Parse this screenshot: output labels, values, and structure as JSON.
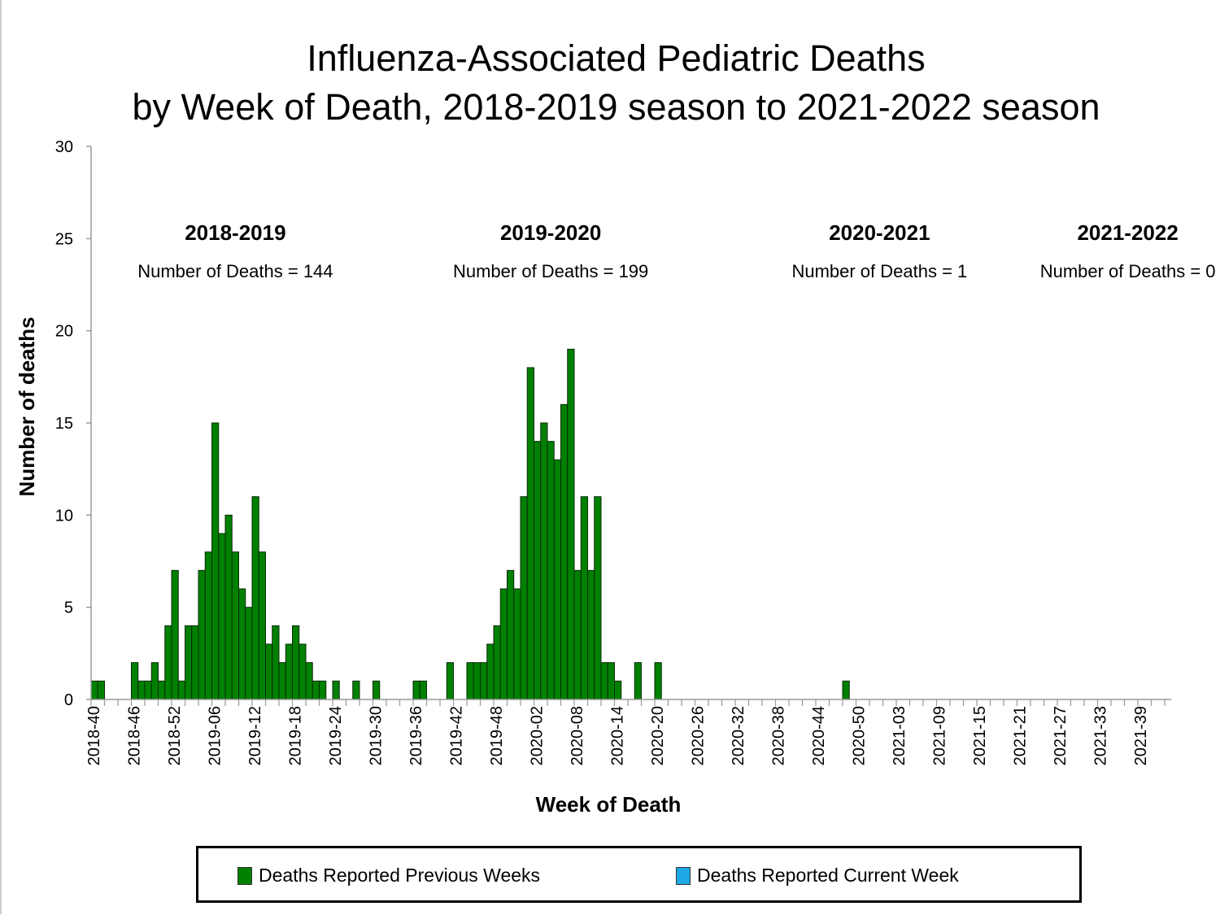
{
  "chart_data": {
    "type": "bar",
    "title": "Influenza-Associated Pediatric Deaths",
    "subtitle": "by Week of Death, 2018-2019 season to 2021-2022 season",
    "xlabel": "Week of Death",
    "ylabel": "Number of deaths",
    "ylim": [
      0,
      30
    ],
    "yticks": [
      0,
      5,
      10,
      15,
      20,
      25,
      30
    ],
    "xtick_labels": [
      "2018-40",
      "2018-46",
      "2018-52",
      "2019-06",
      "2019-12",
      "2019-18",
      "2019-24",
      "2019-30",
      "2019-36",
      "2019-42",
      "2019-48",
      "2020-02",
      "2020-08",
      "2020-14",
      "2020-20",
      "2020-26",
      "2020-32",
      "2020-38",
      "2020-44",
      "2020-50",
      "2021-03",
      "2021-09",
      "2021-15",
      "2021-21",
      "2021-27",
      "2021-33",
      "2021-39"
    ],
    "grid": false,
    "legend_position": "bottom",
    "weeks_per_year": {
      "2018": 52,
      "2019": 52,
      "2020": 53,
      "2021": 52
    },
    "start_week": "2018-40",
    "end_week": "2021-43",
    "series": [
      {
        "name": "Deaths Reported Previous Weeks",
        "color": "#008000",
        "values": [
          1,
          1,
          0,
          0,
          0,
          0,
          2,
          1,
          1,
          2,
          1,
          4,
          7,
          1,
          4,
          4,
          7,
          8,
          15,
          9,
          10,
          8,
          6,
          5,
          11,
          8,
          3,
          4,
          2,
          3,
          4,
          3,
          2,
          1,
          1,
          0,
          1,
          0,
          0,
          1,
          0,
          0,
          1,
          0,
          0,
          0,
          0,
          0,
          1,
          1,
          0,
          0,
          0,
          2,
          0,
          0,
          2,
          2,
          2,
          3,
          4,
          6,
          7,
          6,
          11,
          18,
          14,
          15,
          14,
          13,
          16,
          19,
          7,
          11,
          7,
          11,
          2,
          2,
          1,
          0,
          0,
          2,
          0,
          0,
          2,
          0,
          0,
          0,
          0,
          0,
          0,
          0,
          0,
          0,
          0,
          0,
          0,
          0,
          0,
          0,
          0,
          0,
          0,
          0,
          0,
          0,
          0,
          0,
          0,
          0,
          0,
          0,
          1,
          0,
          0,
          0,
          0,
          0,
          0,
          0,
          0,
          0,
          0,
          0,
          0,
          0,
          0,
          0,
          0,
          0,
          0,
          0,
          0,
          0,
          0,
          0,
          0,
          0,
          0,
          0,
          0,
          0,
          0,
          0,
          0,
          0,
          0,
          0,
          0,
          0,
          0,
          0,
          0,
          0,
          0,
          0,
          0,
          0,
          0,
          0,
          0
        ]
      },
      {
        "name": "Deaths Reported Current Week",
        "color": "#1ea8e6",
        "values": []
      }
    ],
    "annotations": [
      {
        "season": "2018-2019",
        "label": "Number of Deaths = 144",
        "center_week": "2019-09"
      },
      {
        "season": "2019-2020",
        "label": "Number of Deaths = 199",
        "center_week": "2020-04"
      },
      {
        "season": "2020-2021",
        "label": "Number of Deaths = 1",
        "center_week": "2020-53"
      },
      {
        "season": "2021-2022",
        "label": "Number of Deaths = 0",
        "center_week": "2021-37"
      }
    ]
  },
  "legend": {
    "items": [
      {
        "label": "Deaths Reported Previous Weeks",
        "color": "#008000"
      },
      {
        "label": "Deaths Reported Current Week",
        "color": "#1ea8e6"
      }
    ]
  }
}
